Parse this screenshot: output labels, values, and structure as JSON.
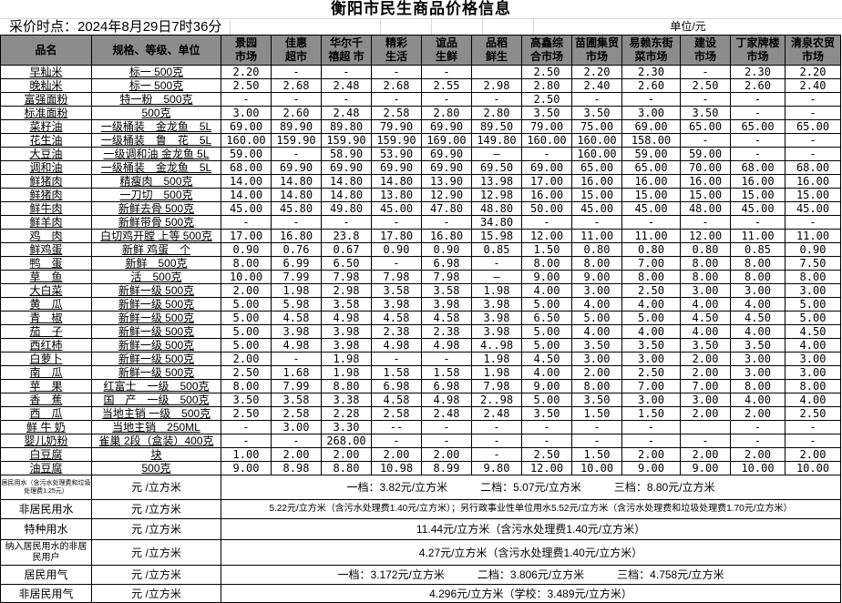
{
  "title": "衡阳市民生商品价格信息",
  "collection_time": "采价时点：2024年8月29日7时36分",
  "unit_label": "单位/元",
  "headers": {
    "name": "品名",
    "spec": "规格、等级、单位",
    "markets": [
      [
        "景园",
        "市场"
      ],
      [
        "佳惠",
        "超市"
      ],
      [
        "华尔千",
        "禧超 市"
      ],
      [
        "精彩",
        "生活"
      ],
      [
        "谊品",
        "生鲜"
      ],
      [
        "品稻",
        "鲜生"
      ],
      [
        "高鑫综",
        "合市场"
      ],
      [
        "苗圃集贸",
        "市场"
      ],
      [
        "易赖东街",
        "菜市场"
      ],
      [
        "建设",
        "市场"
      ],
      [
        "丁家牌楼",
        "市场"
      ],
      [
        "清泉农贸",
        "市场"
      ]
    ]
  },
  "rows": [
    {
      "name": "早籼米",
      "spec": "标一 500克",
      "prices": [
        "2.20",
        "-",
        "-",
        "-",
        "-",
        "",
        "2.50",
        "2.20",
        "2.30",
        "-",
        "2.30",
        "2.20"
      ]
    },
    {
      "name": "晚籼米",
      "spec": "标一 500克",
      "prices": [
        "2.50",
        "2.68",
        "2.48",
        "2.68",
        "2.55",
        "2.98",
        "2.80",
        "2.40",
        "2.60",
        "2.50",
        "2.60",
        "2.40"
      ]
    },
    {
      "name": "富强面粉",
      "spec": "特一粉　500克",
      "prices": [
        "-",
        "-",
        "-",
        "-",
        "-",
        "-",
        "2.50",
        "-",
        "-",
        "-",
        "-",
        "-"
      ]
    },
    {
      "name": "标准面粉",
      "spec": "500克",
      "prices": [
        "3.00",
        "2.60",
        "2.48",
        "2.58",
        "2.80",
        "2.80",
        "3.50",
        "3.50",
        "3.00",
        "3.50",
        "-",
        "-"
      ]
    },
    {
      "name": "菜籽油",
      "spec": "一级桶装　金龙鱼　5L",
      "prices": [
        "69.00",
        "89.90",
        "89.80",
        "79.90",
        "69.90",
        "89.50",
        "79.00",
        "75.00",
        "69.00",
        "65.00",
        "65.00",
        "65.00"
      ]
    },
    {
      "name": "花生油",
      "spec": "一级桶装　鲁　花　5L",
      "prices": [
        "160.00",
        "159.90",
        "159.90",
        "159.90",
        "169.00",
        "149.80",
        "160.00",
        "160.00",
        "158.00",
        "-",
        "-",
        "-"
      ]
    },
    {
      "name": "大豆油",
      "spec": "一级调和油 金龙鱼 5L",
      "prices": [
        "59.00",
        "-",
        "58.90",
        "53.90",
        "69.90",
        "—",
        "-",
        "160.00",
        "59.00",
        "59.00",
        "-",
        "-"
      ]
    },
    {
      "name": "调和油",
      "spec": "一级桶装　金龙鱼　5L",
      "prices": [
        "68.00",
        "69.90",
        "69.90",
        "69.90",
        "69.90",
        "69.50",
        "69.00",
        "65.00",
        "65.00",
        "70.00",
        "68.00",
        "68.00"
      ]
    },
    {
      "name": "鲜猪肉",
      "spec": "精瘦肉　500克",
      "prices": [
        "14.00",
        "14.80",
        "14.80",
        "14.80",
        "13.90",
        "13.98",
        "17.00",
        "16.00",
        "16.00",
        "16.00",
        "16.00",
        "16.00"
      ]
    },
    {
      "name": "鲜猪肉",
      "spec": "一刀切　500克",
      "prices": [
        "14.00",
        "14.80",
        "14.80",
        "13.80",
        "12.90",
        "12.98",
        "16.00",
        "15.00",
        "15.00",
        "15.00",
        "15.00",
        "15.00"
      ]
    },
    {
      "name": "鲜牛肉",
      "spec": "新鲜去骨 500克",
      "prices": [
        "45.00",
        "45.80",
        "49.80",
        "45.00",
        "47.80",
        "48.80",
        "50.00",
        "45.00",
        "45.00",
        "48.00",
        "45.00",
        "45.00"
      ]
    },
    {
      "name": "鲜羊肉",
      "spec": "新鲜带骨 500克",
      "prices": [
        "-",
        "-",
        "-",
        "-",
        "-",
        "34.80",
        "-",
        "-",
        "-",
        "-",
        "-",
        "-"
      ]
    },
    {
      "name": "鸡　肉",
      "spec": "白切鸡开膛 上等 500克",
      "prices": [
        "17.00",
        "16.80",
        "23.8",
        "17.80",
        "16.80",
        "15.98",
        "12.00",
        "11.00",
        "11.00",
        "12.00",
        "11.00",
        "11.00"
      ]
    },
    {
      "name": "鲜鸡蛋",
      "spec": "新鲜 鸡蛋　个",
      "prices": [
        "0.90",
        "0.76",
        "0.67",
        "0.90",
        "0.90",
        "0.85",
        "1.50",
        "0.80",
        "0.80",
        "0.80",
        "0.85",
        "0.90"
      ]
    },
    {
      "name": "鸭　蛋",
      "spec": "新鲜　500克",
      "prices": [
        "8.00",
        "6.99",
        "6.50",
        "-",
        "6.98",
        "-",
        "8.00",
        "8.00",
        "7.00",
        "8.00",
        "8.00",
        "7.50"
      ]
    },
    {
      "name": "草　鱼",
      "spec": "活　500克",
      "prices": [
        "10.00",
        "7.99",
        "7.98",
        "7.98",
        "7.98",
        "—",
        "9.00",
        "9.00",
        "8.00",
        "8.00",
        "8.00",
        "8.00"
      ]
    },
    {
      "name": "大白菜",
      "spec": "新鲜一级 500克",
      "prices": [
        "2.00",
        "1.98",
        "2.98",
        "3.58",
        "3.58",
        "1.98",
        "4.00",
        "3.00",
        "2.50",
        "3.00",
        "3.00",
        "3.00"
      ]
    },
    {
      "name": "黄　瓜",
      "spec": "新鲜一级 500克",
      "prices": [
        "5.00",
        "5.98",
        "3.58",
        "3.98",
        "3.98",
        "3.98",
        "5.00",
        "4.00",
        "4.00",
        "4.00",
        "4.00",
        "5.00"
      ]
    },
    {
      "name": "青　椒",
      "spec": "新鲜一级 500克",
      "prices": [
        "5.00",
        "4.58",
        "4.98",
        "4.58",
        "4.58",
        "3.98",
        "6.50",
        "5.00",
        "5.00",
        "4.50",
        "4.50",
        "5.00"
      ]
    },
    {
      "name": "茄　子",
      "spec": "新鲜一级 500克",
      "prices": [
        "5.00",
        "3.98",
        "3.98",
        "2.38",
        "2.38",
        "3.98",
        "5.00",
        "4.00",
        "4.00",
        "4.00",
        "4.00",
        "4.50"
      ]
    },
    {
      "name": "西红柿",
      "spec": "新鲜一级 500克",
      "prices": [
        "5.00",
        "4.98",
        "3.98",
        "4.98",
        "4.98",
        "4..98",
        "5.00",
        "3.50",
        "3.50",
        "3.50",
        "3.50",
        "4.00"
      ]
    },
    {
      "name": "白萝卜",
      "spec": "新鲜一级 500克",
      "prices": [
        "2.00",
        "-",
        "1.98",
        "-",
        "-",
        "1.98",
        "4.50",
        "3.00",
        "3.00",
        "2.00",
        "3.00",
        "3.00"
      ]
    },
    {
      "name": "南　瓜",
      "spec": "新鲜一级 500克",
      "prices": [
        "2.50",
        "1.68",
        "1.98",
        "1.58",
        "1.58",
        "1.98",
        "4.00",
        "2.00",
        "2.50",
        "2.00",
        "3.00",
        "3.00"
      ]
    },
    {
      "name": "苹　果",
      "spec": "红富士　一级　500克",
      "prices": [
        "8.00",
        "7.99",
        "8.80",
        "6.98",
        "6.98",
        "7.98",
        "9.00",
        "8.00",
        "7.00",
        "7.00",
        "8.00",
        "8.00"
      ]
    },
    {
      "name": "香　蕉",
      "spec": "国　产　一级　500克",
      "prices": [
        "3.50",
        "3.58",
        "3.38",
        "4.58",
        "4.98",
        "2..98",
        "5.00",
        "3.50",
        "3.00",
        "3.00",
        "4.00",
        "4.00"
      ]
    },
    {
      "name": "西　瓜",
      "spec": "当地主销 一级　500克",
      "prices": [
        "2.50",
        "2.58",
        "2.28",
        "2.58",
        "2.48",
        "2.48",
        "3.50",
        "1.50",
        "1.50",
        "2.00",
        "2.00",
        "2.50"
      ]
    },
    {
      "name": "鲜 牛 奶",
      "spec": "当地主销　250ML",
      "prices": [
        "-",
        "3.00",
        "3.30",
        "--",
        "-",
        "-",
        "-",
        "-",
        "-",
        "",
        "-",
        "-"
      ]
    },
    {
      "name": "婴儿奶粉",
      "spec": "雀巢 2段（盒装）400克",
      "prices": [
        "-",
        "-",
        "268.00",
        "-",
        "-",
        "-",
        "-",
        "-",
        "-",
        "-",
        "-",
        "-"
      ]
    },
    {
      "name": "白豆腐",
      "spec": "块",
      "prices": [
        "1.00",
        "2.00",
        "2.00",
        "2.00",
        "2.00",
        "-",
        "2.50",
        "1.50",
        "2.00",
        "2.00",
        "2.00",
        "2.00"
      ]
    },
    {
      "name": "油豆腐",
      "spec": "500克",
      "prices": [
        "9.00",
        "8.98",
        "8.80",
        "10.98",
        "8.99",
        "9.80",
        "12.00",
        "10.00",
        "9.00",
        "9.00",
        "10.00",
        "10.00"
      ]
    }
  ],
  "utilities": [
    {
      "name": "居民用水（含污水处理费和垃圾处理费1.25元）",
      "unit": "元 /立方米",
      "value": "一档：3.82元/立方米　　　二档：5.07元/立方米　　　三档：8.80元/立方米"
    },
    {
      "name": "非居民用水",
      "unit": "元 /立方米",
      "value": "5.22元/立方米（含污水处理费1.40元/立方米）；另行政事业性单位用水5.52元/立方米（含污水处理费和垃圾处理费1.70元/立方米）"
    },
    {
      "name": "特种用水",
      "unit": "元 /立方米",
      "value": "11.44元/立方米（含污水处理费1.40元/立方米）"
    },
    {
      "name": "纳入居民用水的非居民用户",
      "unit": "元 /立方米",
      "value": "4.27元/立方米（含污水处理费1.40元/立方米）"
    },
    {
      "name": "居民用气",
      "unit": "元 /立方米",
      "value": "一档：3.172元/立方米　　　二档：3.806元/立方米　　　三档：4.758元/立方米"
    },
    {
      "name": "非居民用气",
      "unit": "元 /立方米",
      "value": "4.296元/立方米（学校：3.489元/立方米）"
    }
  ],
  "colors": {
    "header_bg": "#8c8c8c",
    "grid": "#000000",
    "sheet_grid": "#d0d7e5"
  }
}
